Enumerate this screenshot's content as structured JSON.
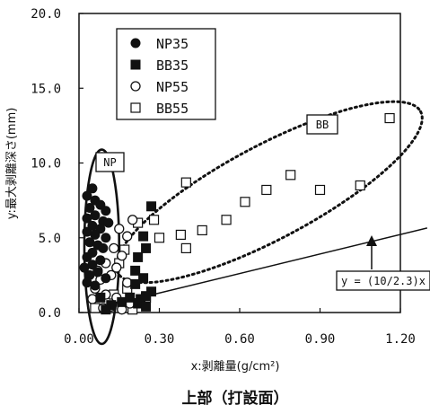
{
  "chart_data": {
    "type": "scatter",
    "title": "",
    "caption": "上部（打設面）",
    "xlabel": "x:剥離量(g/cm²)",
    "ylabel": "y:最大剥離深さ(mm)",
    "xlim": [
      0,
      1.2
    ],
    "ylim": [
      0,
      20
    ],
    "x_ticks": [
      "0.00",
      "0.30",
      "0.60",
      "0.90",
      "1.20"
    ],
    "y_ticks": [
      "0.0",
      "5.0",
      "10.0",
      "15.0",
      "20.0"
    ],
    "grid": false,
    "legend_position": "top-left",
    "series": [
      {
        "name": "NP35",
        "marker": "filled-circle",
        "points": [
          [
            0.05,
            8.3
          ],
          [
            0.03,
            7.8
          ],
          [
            0.06,
            7.5
          ],
          [
            0.08,
            7.2
          ],
          [
            0.04,
            7.0
          ],
          [
            0.1,
            6.8
          ],
          [
            0.06,
            6.5
          ],
          [
            0.03,
            6.3
          ],
          [
            0.09,
            6.1
          ],
          [
            0.11,
            6.0
          ],
          [
            0.05,
            5.8
          ],
          [
            0.08,
            5.6
          ],
          [
            0.03,
            5.4
          ],
          [
            0.06,
            5.2
          ],
          [
            0.1,
            5.0
          ],
          [
            0.04,
            4.7
          ],
          [
            0.07,
            4.5
          ],
          [
            0.09,
            4.3
          ],
          [
            0.05,
            4.0
          ],
          [
            0.03,
            3.7
          ],
          [
            0.08,
            3.5
          ],
          [
            0.05,
            3.2
          ],
          [
            0.02,
            3.0
          ],
          [
            0.07,
            2.7
          ],
          [
            0.04,
            2.5
          ],
          [
            0.1,
            2.3
          ],
          [
            0.03,
            2.0
          ],
          [
            0.06,
            1.8
          ]
        ]
      },
      {
        "name": "BB35",
        "marker": "filled-square",
        "points": [
          [
            0.27,
            7.1
          ],
          [
            0.24,
            5.1
          ],
          [
            0.25,
            4.3
          ],
          [
            0.22,
            3.7
          ],
          [
            0.21,
            2.8
          ],
          [
            0.24,
            2.3
          ],
          [
            0.21,
            1.9
          ],
          [
            0.27,
            1.4
          ],
          [
            0.25,
            1.1
          ],
          [
            0.23,
            0.9
          ],
          [
            0.08,
            1.0
          ],
          [
            0.12,
            0.5
          ],
          [
            0.16,
            0.7
          ],
          [
            0.19,
            1.0
          ],
          [
            0.22,
            0.6
          ],
          [
            0.1,
            0.2
          ],
          [
            0.25,
            0.4
          ]
        ]
      },
      {
        "name": "NP55",
        "marker": "open-circle",
        "points": [
          [
            0.2,
            6.2
          ],
          [
            0.15,
            5.6
          ],
          [
            0.18,
            5.1
          ],
          [
            0.13,
            4.3
          ],
          [
            0.16,
            3.8
          ],
          [
            0.1,
            3.3
          ],
          [
            0.14,
            3.0
          ],
          [
            0.07,
            2.8
          ],
          [
            0.12,
            2.5
          ],
          [
            0.08,
            2.2
          ],
          [
            0.18,
            2.0
          ],
          [
            0.06,
            1.6
          ],
          [
            0.1,
            1.2
          ],
          [
            0.14,
            1.0
          ],
          [
            0.05,
            0.9
          ],
          [
            0.12,
            0.4
          ],
          [
            0.16,
            0.2
          ],
          [
            0.09,
            0.3
          ],
          [
            0.19,
            0.6
          ]
        ]
      },
      {
        "name": "BB55",
        "marker": "open-square",
        "points": [
          [
            1.16,
            13.0
          ],
          [
            0.4,
            8.7
          ],
          [
            0.79,
            9.2
          ],
          [
            0.7,
            8.2
          ],
          [
            0.9,
            8.2
          ],
          [
            1.05,
            8.5
          ],
          [
            0.55,
            6.2
          ],
          [
            0.62,
            7.4
          ],
          [
            0.46,
            5.5
          ],
          [
            0.38,
            5.2
          ],
          [
            0.4,
            4.3
          ],
          [
            0.28,
            6.2
          ],
          [
            0.22,
            6.0
          ],
          [
            0.3,
            5.0
          ],
          [
            0.17,
            4.2
          ],
          [
            0.15,
            3.3
          ],
          [
            0.13,
            1.2
          ],
          [
            0.18,
            1.6
          ],
          [
            0.06,
            0.3
          ],
          [
            0.2,
            0.2
          ],
          [
            0.25,
            1.0
          ]
        ]
      }
    ],
    "annotations": {
      "np_label": "NP",
      "bb_label": "BB",
      "equation": "y = (10/2.3)x"
    },
    "regression_line": {
      "slope": 4.3478,
      "x_range": [
        0.2,
        1.3
      ]
    }
  }
}
